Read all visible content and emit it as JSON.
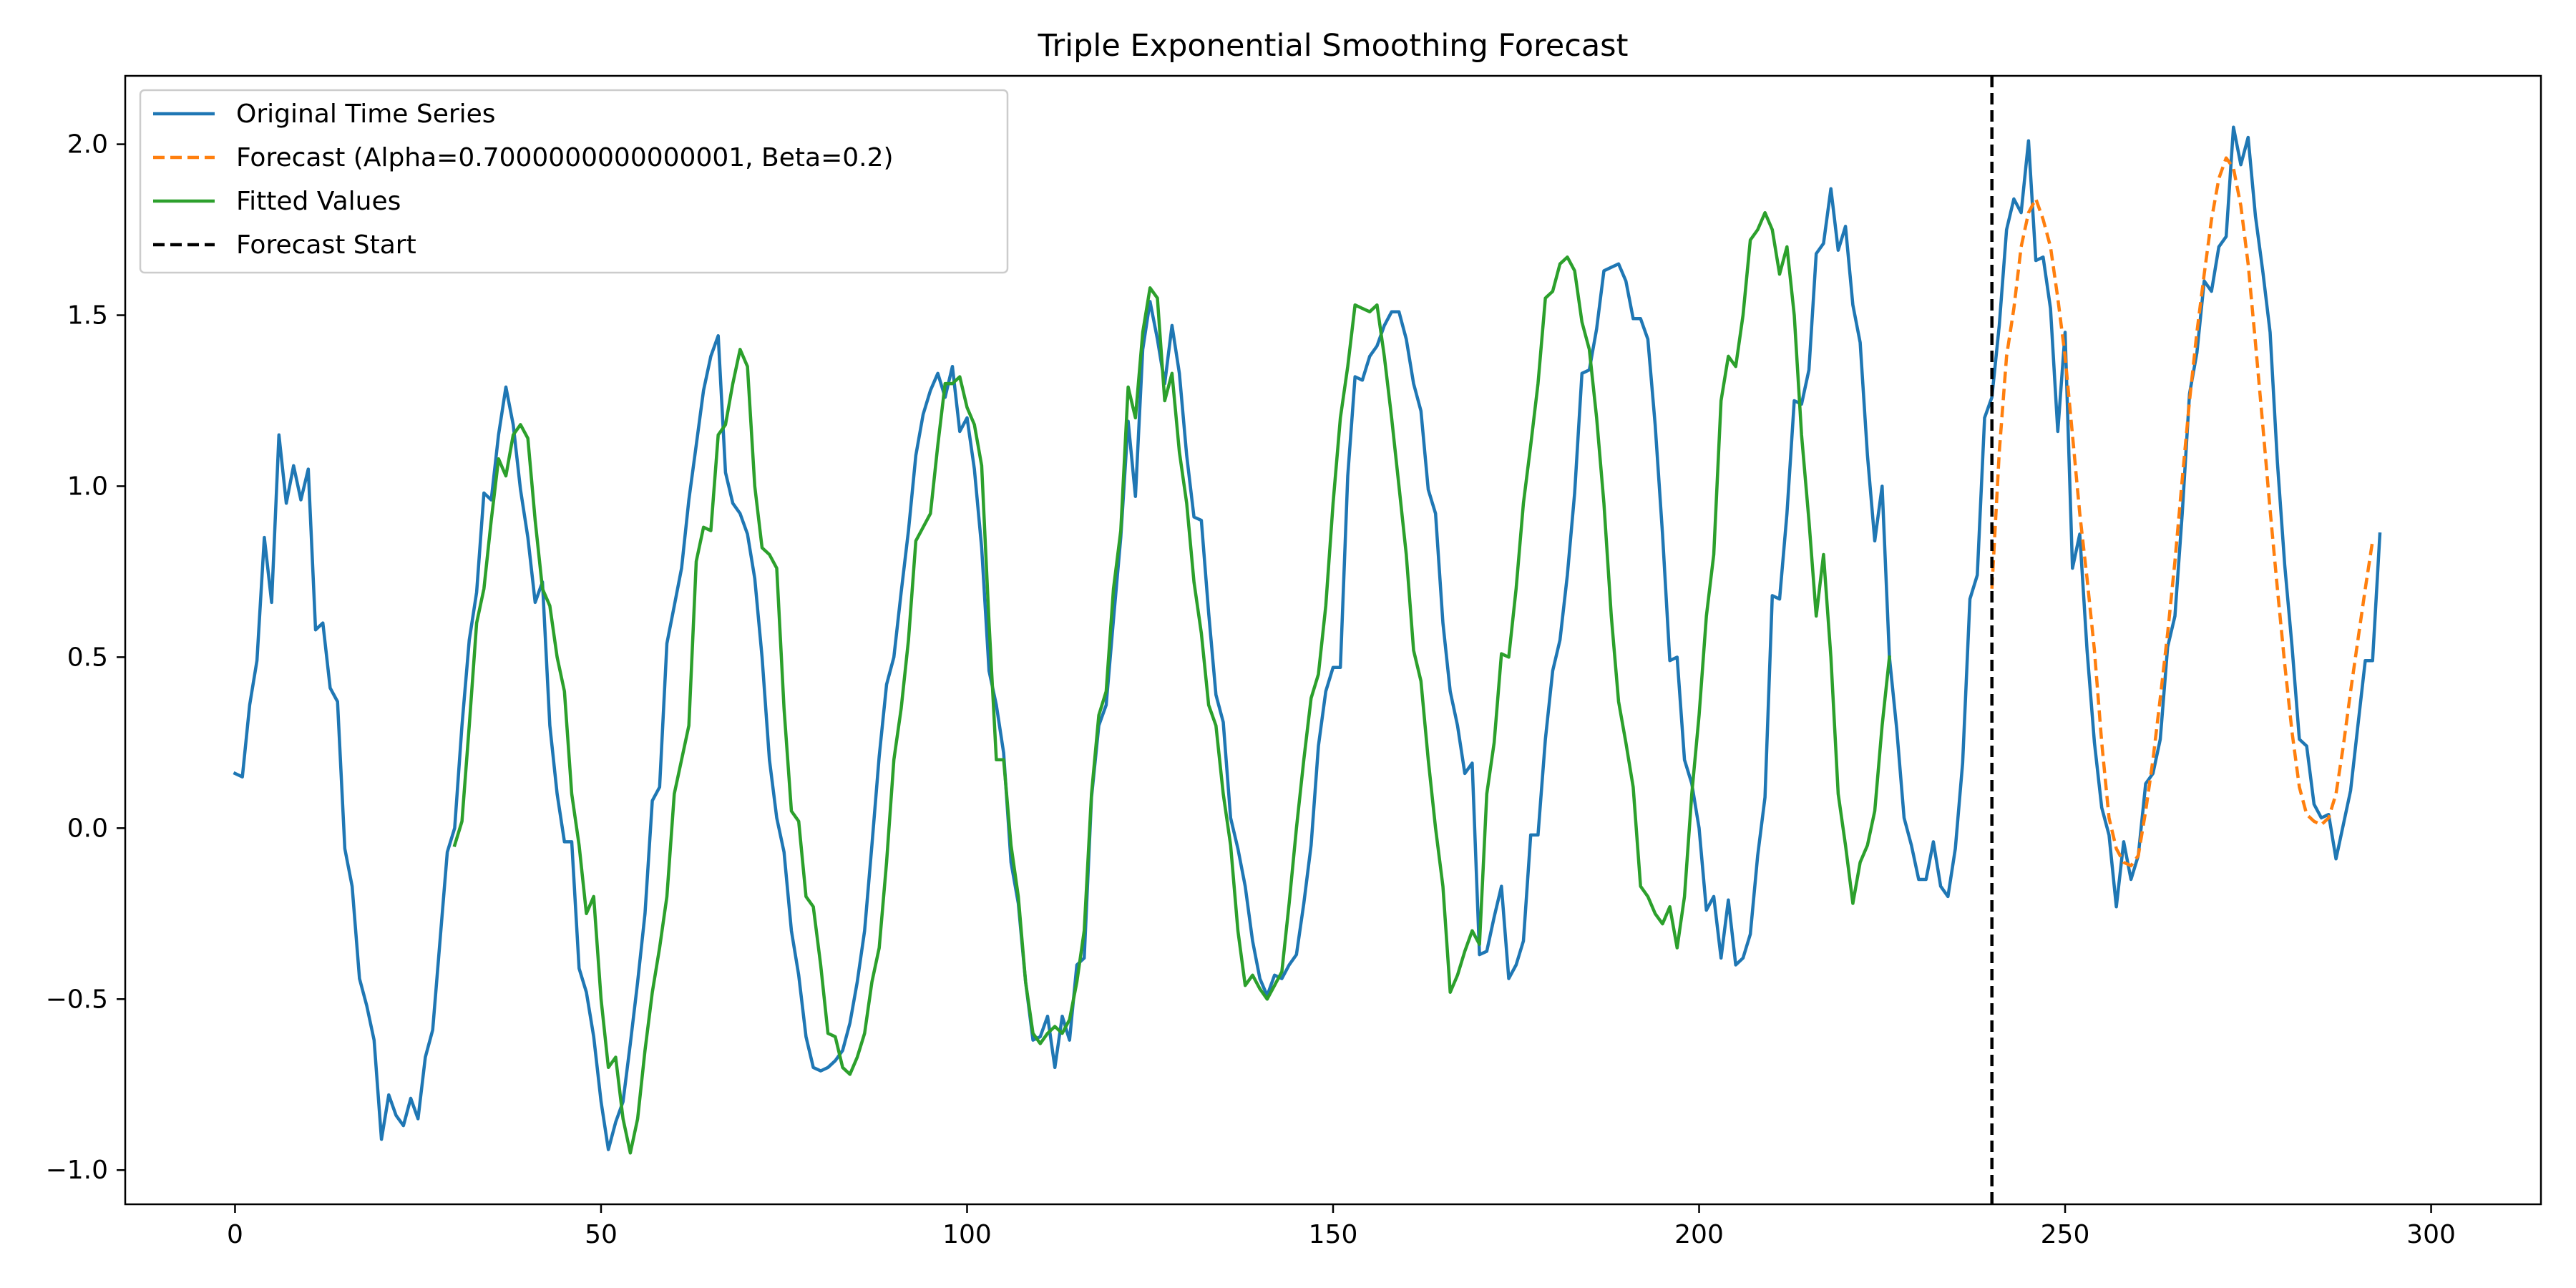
{
  "chart_data": {
    "type": "line",
    "title": "Triple Exponential Smoothing Forecast",
    "xlabel": "",
    "ylabel": "",
    "xlim": [
      -15,
      315
    ],
    "ylim": [
      -1.1,
      2.2
    ],
    "x_ticks": [
      0,
      50,
      100,
      150,
      200,
      250,
      300
    ],
    "y_ticks": [
      -1.0,
      -0.5,
      0.0,
      0.5,
      1.0,
      1.5,
      2.0
    ],
    "x_tick_labels": [
      "0",
      "50",
      "100",
      "150",
      "200",
      "250",
      "300"
    ],
    "y_tick_labels": [
      "−1.0",
      "−0.5",
      "0.0",
      "0.5",
      "1.0",
      "1.5",
      "2.0"
    ],
    "grid": false,
    "legend_position": "upper-left",
    "forecast_start_x": 240,
    "series": [
      {
        "key": "original",
        "name": "Original Time Series",
        "color": "#1f77b4",
        "style": "solid",
        "x_start": 0,
        "values": [
          0.16,
          0.15,
          0.36,
          0.49,
          0.85,
          0.66,
          1.15,
          0.95,
          1.06,
          0.96,
          1.05,
          0.58,
          0.6,
          0.41,
          0.37,
          -0.06,
          -0.17,
          -0.44,
          -0.52,
          -0.62,
          -0.91,
          -0.78,
          -0.84,
          -0.87,
          -0.79,
          -0.85,
          -0.67,
          -0.59,
          -0.33,
          -0.07,
          0.0,
          0.3,
          0.55,
          0.69,
          0.98,
          0.96,
          1.15,
          1.29,
          1.18,
          0.99,
          0.85,
          0.66,
          0.72,
          0.3,
          0.1,
          -0.04,
          -0.04,
          -0.41,
          -0.48,
          -0.61,
          -0.8,
          -0.94,
          -0.86,
          -0.8,
          -0.63,
          -0.45,
          -0.25,
          0.08,
          0.12,
          0.54,
          0.65,
          0.76,
          0.96,
          1.12,
          1.28,
          1.38,
          1.44,
          1.04,
          0.95,
          0.92,
          0.86,
          0.73,
          0.5,
          0.2,
          0.03,
          -0.07,
          -0.3,
          -0.43,
          -0.61,
          -0.7,
          -0.71,
          -0.7,
          -0.68,
          -0.65,
          -0.57,
          -0.45,
          -0.3,
          -0.05,
          0.21,
          0.42,
          0.5,
          0.69,
          0.87,
          1.09,
          1.21,
          1.28,
          1.33,
          1.26,
          1.35,
          1.16,
          1.2,
          1.05,
          0.82,
          0.46,
          0.36,
          0.22,
          -0.1,
          -0.22,
          -0.45,
          -0.62,
          -0.61,
          -0.55,
          -0.7,
          -0.55,
          -0.62,
          -0.4,
          -0.38,
          0.09,
          0.3,
          0.36,
          0.61,
          0.85,
          1.19,
          0.97,
          1.4,
          1.54,
          1.43,
          1.3,
          1.47,
          1.33,
          1.09,
          0.91,
          0.9,
          0.63,
          0.39,
          0.31,
          0.03,
          -0.06,
          -0.17,
          -0.33,
          -0.44,
          -0.49,
          -0.43,
          -0.44,
          -0.4,
          -0.37,
          -0.22,
          -0.05,
          0.24,
          0.4,
          0.47,
          0.47,
          1.03,
          1.32,
          1.31,
          1.38,
          1.41,
          1.47,
          1.51,
          1.51,
          1.43,
          1.3,
          1.22,
          0.99,
          0.92,
          0.6,
          0.4,
          0.3,
          0.16,
          0.19,
          -0.37,
          -0.36,
          -0.26,
          -0.17,
          -0.44,
          -0.4,
          -0.33,
          -0.02,
          -0.02,
          0.26,
          0.46,
          0.55,
          0.74,
          0.98,
          1.33,
          1.34,
          1.46,
          1.63,
          1.64,
          1.65,
          1.6,
          1.49,
          1.49,
          1.43,
          1.18,
          0.86,
          0.49,
          0.5,
          0.2,
          0.13,
          0.0,
          -0.24,
          -0.2,
          -0.38,
          -0.21,
          -0.4,
          -0.38,
          -0.31,
          -0.08,
          0.09,
          0.68,
          0.67,
          0.92,
          1.25,
          1.24,
          1.34,
          1.68,
          1.71,
          1.87,
          1.69,
          1.76,
          1.53,
          1.42,
          1.09,
          0.84,
          1.0,
          0.5,
          0.29,
          0.03,
          -0.05,
          -0.15,
          -0.15,
          -0.04,
          -0.17,
          -0.2,
          -0.06,
          0.19,
          0.67,
          0.74,
          1.2,
          1.26,
          1.47,
          1.75,
          1.84,
          1.8,
          2.01,
          1.66,
          1.67,
          1.52,
          1.16,
          1.45,
          0.76,
          0.86,
          0.52,
          0.25,
          0.06,
          -0.02,
          -0.23,
          -0.04,
          -0.15,
          -0.08,
          0.13,
          0.16,
          0.26,
          0.53,
          0.62,
          0.92,
          1.27,
          1.39,
          1.6,
          1.57,
          1.7,
          1.73,
          2.05,
          1.94,
          2.02,
          1.79,
          1.63,
          1.45,
          1.07,
          0.77,
          0.53,
          0.26,
          0.24,
          0.07,
          0.03,
          0.04,
          -0.09,
          0.01,
          0.11,
          0.3,
          0.49,
          0.49,
          0.86
        ]
      },
      {
        "key": "forecast",
        "name": "Forecast (Alpha=0.7000000000000001, Beta=0.2)",
        "color": "#ff7f0e",
        "style": "dashed",
        "x_start": 240,
        "values": [
          0.7,
          1.1,
          1.38,
          1.52,
          1.7,
          1.8,
          1.84,
          1.78,
          1.7,
          1.55,
          1.38,
          1.15,
          0.92,
          0.73,
          0.52,
          0.25,
          0.03,
          -0.06,
          -0.1,
          -0.11,
          -0.08,
          0.05,
          0.2,
          0.38,
          0.57,
          0.78,
          1.02,
          1.25,
          1.45,
          1.62,
          1.78,
          1.9,
          1.96,
          1.93,
          1.82,
          1.65,
          1.42,
          1.18,
          0.93,
          0.7,
          0.48,
          0.28,
          0.12,
          0.04,
          0.02,
          0.01,
          0.03,
          0.1,
          0.24,
          0.4,
          0.55,
          0.7,
          0.84
        ]
      },
      {
        "key": "fitted",
        "name": "Fitted Values",
        "color": "#2ca02c",
        "style": "solid",
        "x_start": 30,
        "values": [
          -0.05,
          0.02,
          0.3,
          0.6,
          0.7,
          0.9,
          1.08,
          1.03,
          1.15,
          1.18,
          1.14,
          0.9,
          0.7,
          0.65,
          0.5,
          0.4,
          0.1,
          -0.05,
          -0.25,
          -0.2,
          -0.5,
          -0.7,
          -0.67,
          -0.85,
          -0.95,
          -0.85,
          -0.65,
          -0.48,
          -0.35,
          -0.2,
          0.1,
          0.2,
          0.3,
          0.78,
          0.88,
          0.87,
          1.15,
          1.18,
          1.3,
          1.4,
          1.35,
          1.0,
          0.82,
          0.8,
          0.76,
          0.35,
          0.05,
          0.02,
          -0.2,
          -0.23,
          -0.4,
          -0.6,
          -0.61,
          -0.7,
          -0.72,
          -0.67,
          -0.6,
          -0.45,
          -0.35,
          -0.1,
          0.2,
          0.35,
          0.55,
          0.84,
          0.88,
          0.92,
          1.12,
          1.3,
          1.3,
          1.32,
          1.23,
          1.18,
          1.06,
          0.6,
          0.2,
          0.2,
          -0.05,
          -0.2,
          -0.45,
          -0.6,
          -0.63,
          -0.6,
          -0.58,
          -0.6,
          -0.56,
          -0.45,
          -0.3,
          0.1,
          0.33,
          0.4,
          0.7,
          0.87,
          1.29,
          1.2,
          1.45,
          1.58,
          1.55,
          1.25,
          1.33,
          1.1,
          0.95,
          0.72,
          0.57,
          0.36,
          0.3,
          0.1,
          -0.05,
          -0.3,
          -0.46,
          -0.43,
          -0.47,
          -0.5,
          -0.46,
          -0.42,
          -0.22,
          0.0,
          0.2,
          0.38,
          0.45,
          0.65,
          0.95,
          1.2,
          1.35,
          1.53,
          1.52,
          1.51,
          1.53,
          1.38,
          1.2,
          1.0,
          0.8,
          0.52,
          0.43,
          0.2,
          0.0,
          -0.17,
          -0.48,
          -0.43,
          -0.36,
          -0.3,
          -0.34,
          0.1,
          0.25,
          0.51,
          0.5,
          0.7,
          0.95,
          1.12,
          1.3,
          1.55,
          1.57,
          1.65,
          1.67,
          1.63,
          1.48,
          1.4,
          1.2,
          0.95,
          0.62,
          0.37,
          0.25,
          0.12,
          -0.17,
          -0.2,
          -0.25,
          -0.28,
          -0.23,
          -0.35,
          -0.2,
          0.1,
          0.33,
          0.62,
          0.8,
          1.25,
          1.38,
          1.35,
          1.5,
          1.72,
          1.75,
          1.8,
          1.75,
          1.62,
          1.7,
          1.5,
          1.15,
          0.9,
          0.62,
          0.8,
          0.5,
          0.1,
          -0.05,
          -0.22,
          -0.1,
          -0.05,
          0.05,
          0.3,
          0.5
        ]
      }
    ],
    "legend": [
      {
        "key": "original",
        "label": "Original Time Series",
        "color": "#1f77b4",
        "style": "solid"
      },
      {
        "key": "forecast",
        "label": "Forecast (Alpha=0.7000000000000001, Beta=0.2)",
        "color": "#ff7f0e",
        "style": "dashed"
      },
      {
        "key": "fitted",
        "label": "Fitted Values",
        "color": "#2ca02c",
        "style": "solid"
      },
      {
        "key": "forecast_start",
        "label": "Forecast Start",
        "color": "#000000",
        "style": "dashed"
      }
    ]
  }
}
